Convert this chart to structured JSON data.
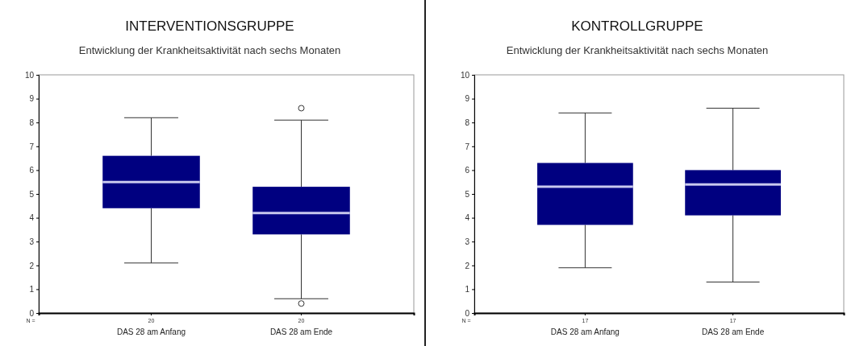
{
  "chart_data": [
    {
      "type": "box",
      "title": "INTERVENTIONSGRUPPE",
      "subtitle": "Entwicklung der Krankheitsaktivität nach sechs Monaten",
      "categories": [
        "DAS 28 am Anfang",
        "DAS 28 am Ende"
      ],
      "color": "#000080",
      "boxes": [
        {
          "low": 2.1,
          "q1": 4.4,
          "median": 5.5,
          "q3": 6.6,
          "high": 8.2
        },
        {
          "low": 0.6,
          "q1": 3.3,
          "median": 4.2,
          "q3": 5.3,
          "high": 8.1,
          "outliers": [
            8.6,
            0.4
          ]
        }
      ],
      "ylim": [
        0,
        10
      ],
      "yticks": [
        0,
        1,
        2,
        3,
        4,
        5,
        6,
        7,
        8,
        9,
        10
      ],
      "grid": false,
      "annotations": [
        "N =",
        "20",
        "20"
      ]
    },
    {
      "type": "box",
      "title": "KONTROLLGRUPPE",
      "subtitle": "Entwicklung der Krankheitsaktivität nach sechs Monaten",
      "categories": [
        "DAS 28 am Anfang",
        "DAS 28 am Ende"
      ],
      "color": "#000080",
      "boxes": [
        {
          "low": 1.9,
          "q1": 3.7,
          "median": 5.3,
          "q3": 6.3,
          "high": 8.4
        },
        {
          "low": 1.3,
          "q1": 4.1,
          "median": 5.4,
          "q3": 6.0,
          "high": 8.6
        }
      ],
      "ylim": [
        0,
        10
      ],
      "yticks": [
        0,
        1,
        2,
        3,
        4,
        5,
        6,
        7,
        8,
        9,
        10
      ],
      "grid": false,
      "annotations": [
        "N =",
        "17",
        "17"
      ]
    }
  ]
}
